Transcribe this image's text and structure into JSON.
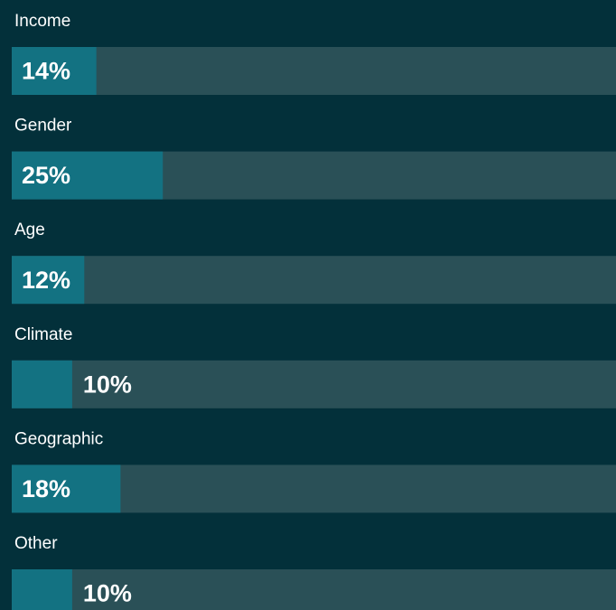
{
  "chart_data": {
    "type": "bar",
    "orientation": "horizontal",
    "categories": [
      "Income",
      "Gender",
      "Age",
      "Climate",
      "Geographic",
      "Other"
    ],
    "values": [
      14,
      25,
      12,
      10,
      18,
      10
    ],
    "value_labels": [
      "14%",
      "25%",
      "12%",
      "10%",
      "18%",
      "10%"
    ],
    "color": "#137282",
    "track_color": "#2a5057",
    "xlim": [
      0,
      100
    ]
  }
}
